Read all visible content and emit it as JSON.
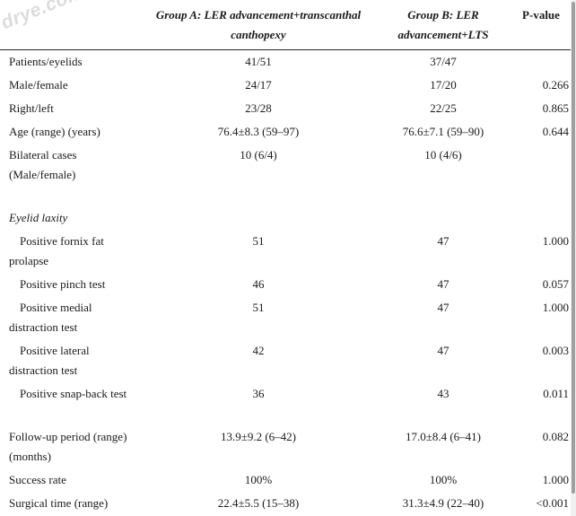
{
  "watermark": "drye.com",
  "table": {
    "headers": [
      "",
      "Group A: LER advancement+transcanthal canthopexy",
      "Group B: LER advancement+LTS",
      "P-value"
    ],
    "rows": {
      "patients": {
        "label": "Patients/eyelids",
        "a": "41/51",
        "b": "37/47",
        "p": ""
      },
      "sex": {
        "label": "Male/female",
        "a": "24/17",
        "b": "17/20",
        "p": "0.266"
      },
      "side": {
        "label": "Right/left",
        "a": "23/28",
        "b": "22/25",
        "p": "0.865"
      },
      "age": {
        "label": "Age (range) (years)",
        "a": "76.4±8.3 (59–97)",
        "b": "76.6±7.1 (59–90)",
        "p": "0.644"
      },
      "bilateral": {
        "label_line1": "Bilateral cases",
        "label_line2": "(Male/female)",
        "a": "10 (6/4)",
        "b": "10 (4/6)",
        "p": ""
      },
      "laxity": {
        "label": "Eyelid laxity"
      },
      "fornix": {
        "label_line1": "Positive fornix fat",
        "label_line2": "prolapse",
        "a": "51",
        "b": "47",
        "p": "1.000"
      },
      "pinch": {
        "label": "Positive pinch test",
        "a": "46",
        "b": "47",
        "p": "0.057"
      },
      "medial": {
        "label_line1": "Positive medial",
        "label_line2": "distraction test",
        "a": "51",
        "b": "47",
        "p": "1.000"
      },
      "lateral": {
        "label_line1": "Positive lateral",
        "label_line2": "distraction test",
        "a": "42",
        "b": "47",
        "p": "0.003"
      },
      "snap": {
        "label": "Positive snap-back test",
        "a": "36",
        "b": "43",
        "p": "0.011"
      },
      "followup": {
        "label_line1": "Follow-up period (range)",
        "label_line2": "(months)",
        "a": "13.9±9.2 (6–42)",
        "b": "17.0±8.4 (6–41)",
        "p": "0.082"
      },
      "success": {
        "label": "Success rate",
        "a": "100%",
        "b": "100%",
        "p": "1.000"
      },
      "surgical": {
        "label": "Surgical time (range)",
        "a": "22.4±5.5 (15–38)",
        "b": "31.3±4.9 (22–40)",
        "p": "<0.001"
      }
    }
  }
}
